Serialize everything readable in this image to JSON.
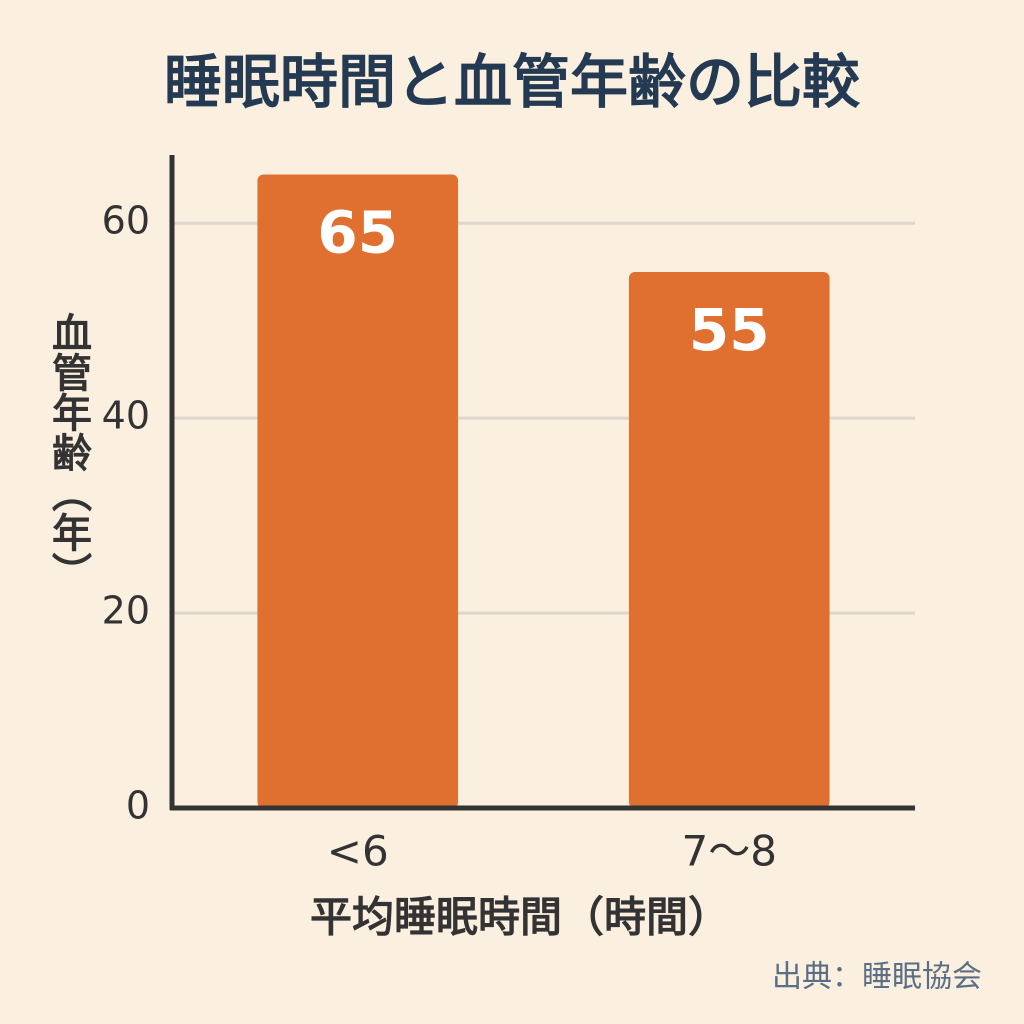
{
  "chart_data": {
    "type": "bar",
    "title": "睡眠時間と血管年齢の比較",
    "x_label": "平均睡眠時間（時間）",
    "y_label": "血管年齢（年）",
    "categories": [
      "<6",
      "7〜8"
    ],
    "values": [
      65,
      55
    ],
    "color": "#e07030",
    "ylim": [
      0,
      67
    ],
    "yticks": [
      0,
      20,
      40,
      60
    ],
    "grid": true,
    "source": "出典：睡眠協会"
  }
}
